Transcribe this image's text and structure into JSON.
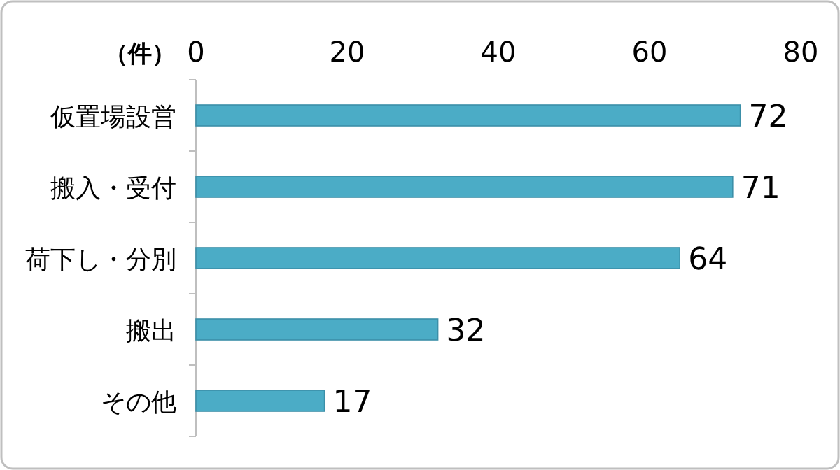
{
  "chart_data": {
    "type": "bar",
    "orientation": "horizontal",
    "xlabel": "（件）",
    "categories": [
      "仮置場設営",
      "搬入・受付",
      "荷下し・分別",
      "搬出",
      "その他"
    ],
    "values": [
      72,
      71,
      64,
      32,
      17
    ],
    "color": "#4bacc6",
    "xlim": [
      0,
      80
    ],
    "xticks": [
      0,
      20,
      40,
      60,
      80
    ],
    "data_labels": true,
    "grid": false
  }
}
